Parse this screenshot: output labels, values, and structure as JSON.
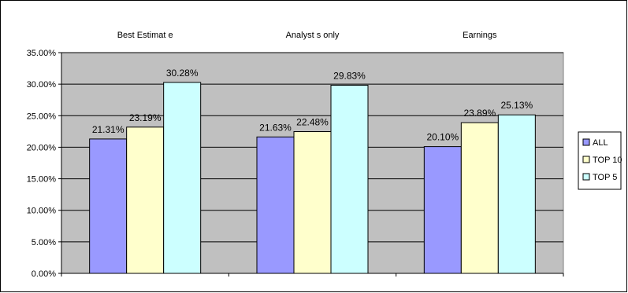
{
  "chart_data": {
    "type": "bar",
    "categories": [
      "Best Estimate",
      "Analysts only",
      "Earnings"
    ],
    "category_labels": [
      "Best Estimat e",
      "Analyst s only",
      "Earnings"
    ],
    "series": [
      {
        "name": "ALL",
        "values": [
          21.31,
          21.63,
          20.1
        ],
        "color": "#9999ff"
      },
      {
        "name": "TOP 10",
        "values": [
          23.19,
          22.48,
          23.89
        ],
        "color": "#ffffcc"
      },
      {
        "name": "TOP 5",
        "values": [
          30.28,
          29.83,
          25.13
        ],
        "color": "#ccffff"
      }
    ],
    "data_labels": [
      [
        "21.31%",
        "21.63%",
        "20.10%"
      ],
      [
        "23.19%",
        "22.48%",
        "23.89%"
      ],
      [
        "30.28%",
        "29.83%",
        "25.13%"
      ]
    ],
    "y_ticks": [
      "0.00%",
      "5.00%",
      "10.00%",
      "15.00%",
      "20.00%",
      "25.00%",
      "30.00%",
      "35.00%"
    ],
    "ylim": [
      0,
      35
    ],
    "ytick_step": 5,
    "grid": true,
    "legend_position": "right",
    "plot_background": "#c0c0c0",
    "title": "",
    "xlabel": "",
    "ylabel": ""
  }
}
